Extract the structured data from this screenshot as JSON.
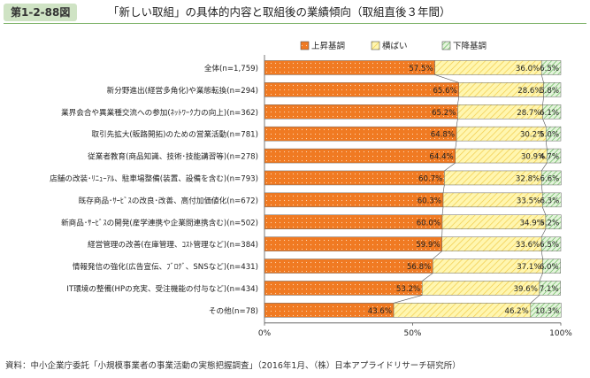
{
  "figure_number": "第1-2-88図",
  "figure_title": "「新しい取組」の具体的内容と取組後の業績傾向（取組直後３年間）",
  "source": "資料：中小企業庁委託「小規模事業者の事業活動の実態把握調査」（2016年1月、（株）日本アプライドリサーチ研究所）",
  "colors": {
    "up": "#f07a22",
    "flat": "#fff6b0",
    "flat_stripe": "#f2cc4a",
    "down": "#e4f4dc",
    "down_stripe": "#58b34a"
  },
  "chart_data": {
    "type": "bar",
    "orientation": "horizontal",
    "stacked": true,
    "percent": true,
    "xlim": [
      0,
      100
    ],
    "xticks": [
      "0%",
      "50%",
      "100%"
    ],
    "legend_position": "top-right",
    "categories": [
      "全体(n=1,759)",
      "新分野進出(経営多角化)や業態転換(n=294)",
      "業界会合や異業種交流への参加(ﾈｯﾄﾜｰｸ力の向上)(n=362)",
      "取引先拡大(販路開拓)のための営業活動(n=781)",
      "従業者教育(商品知識、技術･技能講習等)(n=278)",
      "店舗の改装･ﾘﾆｭｰｱﾙ、駐車場整備(装置、設備を含む)(n=793)",
      "既存商品･ｻｰﾋﾞｽの改良･改善、高付加価値化(n=672)",
      "新商品･ｻｰﾋﾞｽの開発(産学連携や企業間連携含む)(n=502)",
      "経営管理の改善(在庫管理、ｺｽﾄ管理など)(n=384)",
      "情報発信の強化(広告宣伝、ﾌﾞﾛｸﾞ、SNSなど)(n=431)",
      "IT環境の整備(HPの充実、受注機能の付与など)(n=434)",
      "その他(n=78)"
    ],
    "series": [
      {
        "name": "上昇基調",
        "values": [
          57.5,
          65.6,
          65.2,
          64.8,
          64.4,
          60.7,
          60.3,
          60.0,
          59.9,
          56.8,
          53.2,
          43.6
        ]
      },
      {
        "name": "横ばい",
        "values": [
          36.0,
          28.6,
          28.7,
          30.2,
          30.9,
          32.8,
          33.5,
          34.9,
          33.6,
          37.1,
          39.6,
          46.2
        ]
      },
      {
        "name": "下降基調",
        "values": [
          6.5,
          5.8,
          6.1,
          5.0,
          4.7,
          6.6,
          6.3,
          5.2,
          6.5,
          6.0,
          7.1,
          10.3
        ]
      }
    ]
  }
}
